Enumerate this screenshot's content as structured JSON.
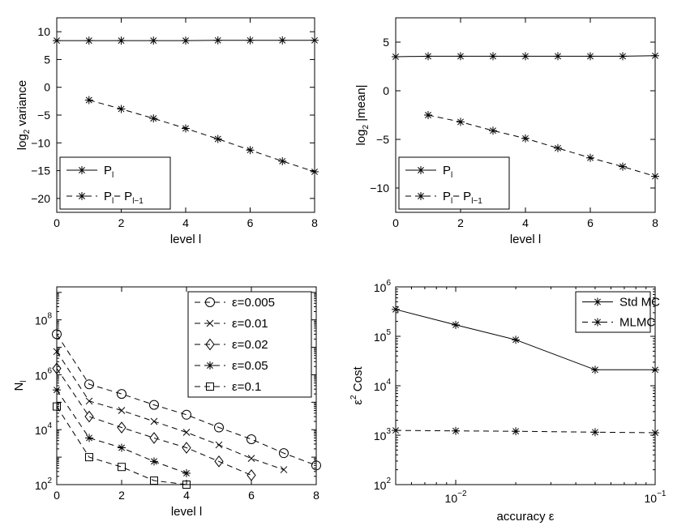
{
  "chart_data": [
    {
      "type": "line",
      "xlabel": "level l",
      "ylabel_main": "log",
      "ylabel_sub": "2",
      "ylabel_rest": " variance",
      "xlim": [
        0,
        8
      ],
      "ylim": [
        -22.5,
        12.5
      ],
      "xticks": [
        0,
        2,
        4,
        6,
        8
      ],
      "yticks": [
        -20,
        -15,
        -10,
        -5,
        0,
        5,
        10
      ],
      "legend_position": "bottom-left",
      "series": [
        {
          "legend_main": "P",
          "legend_sub": "l",
          "legend_rest": "",
          "legend_sub2": "",
          "dash": "solid",
          "marker": "asterisk",
          "x": [
            0,
            1,
            2,
            3,
            4,
            5,
            6,
            7,
            8
          ],
          "y": [
            8.4,
            8.4,
            8.4,
            8.4,
            8.4,
            8.45,
            8.45,
            8.45,
            8.45
          ]
        },
        {
          "legend_main": "P",
          "legend_sub": "l",
          "legend_rest": "− P",
          "legend_sub2": "l−1",
          "dash": "dashed",
          "marker": "asterisk",
          "x": [
            1,
            2,
            3,
            4,
            5,
            6,
            7,
            8
          ],
          "y": [
            -2.3,
            -3.9,
            -5.6,
            -7.4,
            -9.3,
            -11.3,
            -13.3,
            -15.2
          ]
        }
      ]
    },
    {
      "type": "line",
      "xlabel": "level l",
      "ylabel_main": "log",
      "ylabel_sub": "2",
      "ylabel_rest": " |mean|",
      "xlim": [
        0,
        8
      ],
      "ylim": [
        -12.5,
        7.5
      ],
      "xticks": [
        0,
        2,
        4,
        6,
        8
      ],
      "yticks": [
        -10,
        -5,
        0,
        5
      ],
      "legend_position": "bottom-left",
      "series": [
        {
          "legend_main": "P",
          "legend_sub": "l",
          "legend_rest": "",
          "legend_sub2": "",
          "dash": "solid",
          "marker": "asterisk",
          "x": [
            0,
            1,
            2,
            3,
            4,
            5,
            6,
            7,
            8
          ],
          "y": [
            3.5,
            3.55,
            3.55,
            3.55,
            3.55,
            3.55,
            3.55,
            3.55,
            3.6
          ]
        },
        {
          "legend_main": "P",
          "legend_sub": "l",
          "legend_rest": "− P",
          "legend_sub2": "l−1",
          "dash": "dashed",
          "marker": "asterisk",
          "x": [
            1,
            2,
            3,
            4,
            5,
            6,
            7,
            8
          ],
          "y": [
            -2.5,
            -3.2,
            -4.1,
            -4.9,
            -5.9,
            -6.9,
            -7.8,
            -8.8
          ]
        }
      ]
    },
    {
      "type": "line",
      "xlabel": "level l",
      "ylabel_main": "N",
      "ylabel_sub": "l",
      "ylabel_rest": "",
      "xlim": [
        0,
        8
      ],
      "ylog": true,
      "ylim_log10": [
        2,
        9.2
      ],
      "xticks": [
        0,
        2,
        4,
        6,
        8
      ],
      "yticks_exp": [
        2,
        4,
        6,
        8
      ],
      "legend_position": "top-right",
      "series": [
        {
          "legend_main": "ε=0.005",
          "dash": "dashed",
          "marker": "circle",
          "x": [
            0,
            1,
            2,
            3,
            4,
            5,
            6,
            7,
            8
          ],
          "y": [
            30000000.0,
            450000.0,
            200000.0,
            80000.0,
            35000.0,
            12000.0,
            4500.0,
            1400.0,
            500.0
          ]
        },
        {
          "legend_main": "ε=0.01",
          "dash": "dashed",
          "marker": "x",
          "x": [
            0,
            1,
            2,
            3,
            4,
            5,
            6,
            7
          ],
          "y": [
            7000000.0,
            110000.0,
            50000.0,
            20000.0,
            8000.0,
            2800.0,
            900.0,
            350.0
          ]
        },
        {
          "legend_main": "ε=0.02",
          "dash": "dashed",
          "marker": "diamond",
          "x": [
            0,
            1,
            2,
            3,
            4,
            5,
            6
          ],
          "y": [
            1700000.0,
            30000.0,
            12000.0,
            5000.0,
            2200.0,
            700.0,
            220.0
          ]
        },
        {
          "legend_main": "ε=0.05",
          "dash": "dashed",
          "marker": "asterisk",
          "x": [
            0,
            1,
            2,
            3,
            4
          ],
          "y": [
            280000.0,
            5000.0,
            2200.0,
            700.0,
            260.0
          ]
        },
        {
          "legend_main": "ε=0.1",
          "dash": "dashed",
          "marker": "square",
          "x": [
            0,
            1,
            2,
            3,
            4
          ],
          "y": [
            70000.0,
            1000.0,
            440.0,
            140.0,
            100.0
          ]
        }
      ]
    },
    {
      "type": "line",
      "xlabel": "accuracy ε",
      "ylabel_main": "ε",
      "ylabel_sup": "2",
      "ylabel_rest": " Cost",
      "xlog": true,
      "ylog": true,
      "xlim_log10": [
        -2.301,
        -1
      ],
      "ylim_log10": [
        2,
        6
      ],
      "xticks_exp": [
        -2,
        -1
      ],
      "yticks_exp": [
        2,
        3,
        4,
        5,
        6
      ],
      "legend_position": "top-right",
      "series": [
        {
          "legend_main": "Std MC",
          "dash": "solid",
          "marker": "asterisk",
          "x": [
            0.005,
            0.01,
            0.02,
            0.05,
            0.1
          ],
          "y": [
            350000.0,
            170000.0,
            85000.0,
            21000.0,
            21000.0
          ]
        },
        {
          "legend_main": "MLMC",
          "dash": "dashed",
          "marker": "asterisk",
          "x": [
            0.005,
            0.01,
            0.02,
            0.05,
            0.1
          ],
          "y": [
            1250.0,
            1220.0,
            1200.0,
            1150.0,
            1120.0
          ]
        }
      ]
    }
  ]
}
